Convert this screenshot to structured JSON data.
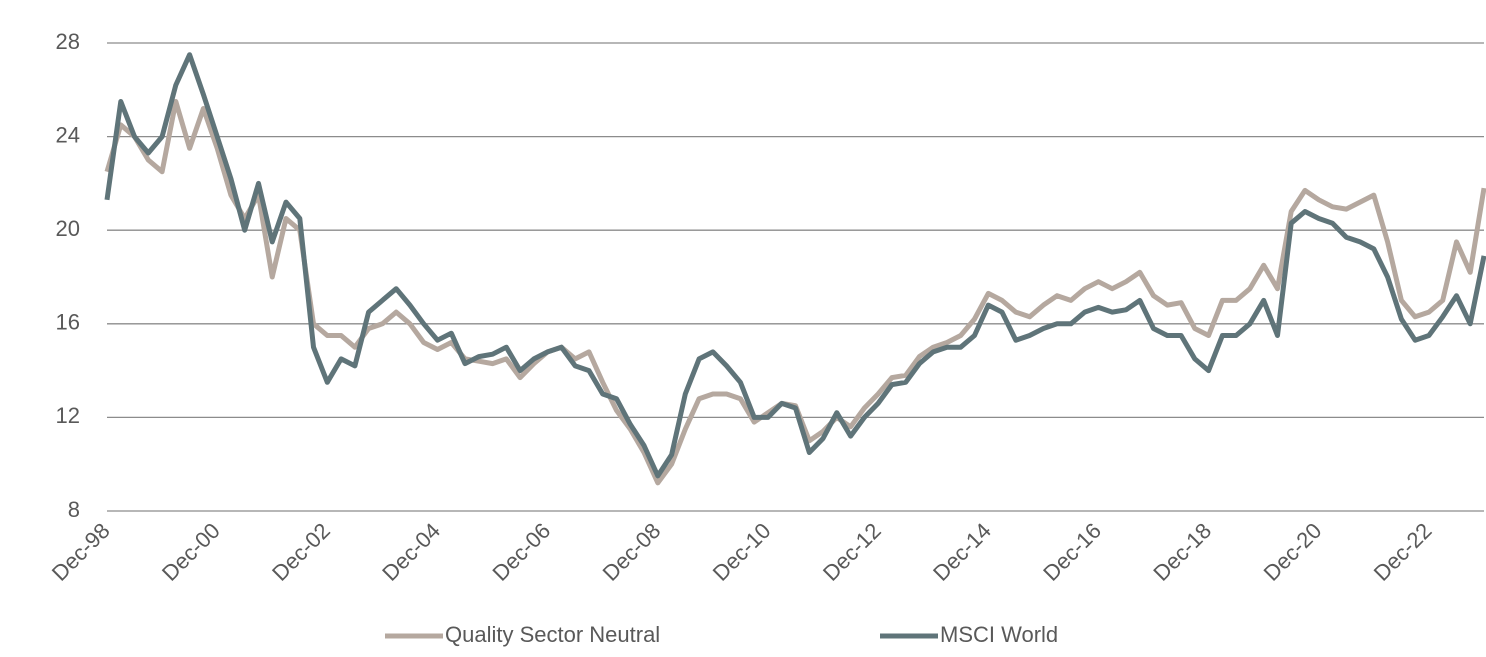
{
  "chart_data": {
    "type": "line",
    "categories": [
      "Dec-98",
      null,
      null,
      null,
      null,
      null,
      null,
      null,
      "Dec-00",
      null,
      null,
      null,
      null,
      null,
      null,
      null,
      "Dec-02",
      null,
      null,
      null,
      null,
      null,
      null,
      null,
      "Dec-04",
      null,
      null,
      null,
      null,
      null,
      null,
      null,
      "Dec-06",
      null,
      null,
      null,
      null,
      null,
      null,
      null,
      "Dec-08",
      null,
      null,
      null,
      null,
      null,
      null,
      null,
      "Dec-10",
      null,
      null,
      null,
      null,
      null,
      null,
      null,
      "Dec-12",
      null,
      null,
      null,
      null,
      null,
      null,
      null,
      "Dec-14",
      null,
      null,
      null,
      null,
      null,
      null,
      null,
      "Dec-16",
      null,
      null,
      null,
      null,
      null,
      null,
      null,
      "Dec-18",
      null,
      null,
      null,
      null,
      null,
      null,
      null,
      "Dec-20",
      null,
      null,
      null,
      null,
      null,
      null,
      null,
      "Dec-22",
      null,
      null,
      null,
      null
    ],
    "series": [
      {
        "name": "Quality Sector Neutral",
        "color": "#b5a89f",
        "values": [
          22.5,
          24.5,
          24.0,
          23.0,
          22.5,
          25.5,
          23.5,
          25.2,
          23.5,
          21.5,
          20.5,
          21.5,
          18.0,
          20.5,
          20.0,
          16.0,
          15.5,
          15.5,
          15.0,
          15.8,
          16.0,
          16.5,
          16.0,
          15.2,
          14.9,
          15.2,
          14.5,
          14.4,
          14.3,
          14.5,
          13.7,
          14.3,
          14.8,
          15.0,
          14.5,
          14.8,
          13.5,
          12.3,
          11.5,
          10.5,
          9.2,
          10.0,
          11.5,
          12.8,
          13.0,
          13.0,
          12.8,
          11.8,
          12.2,
          12.6,
          12.5,
          11.0,
          11.4,
          12.0,
          11.6,
          12.4,
          13.0,
          13.7,
          13.8,
          14.6,
          15.0,
          15.2,
          15.5,
          16.2,
          17.3,
          17.0,
          16.5,
          16.3,
          16.8,
          17.2,
          17.0,
          17.5,
          17.8,
          17.5,
          17.8,
          18.2,
          17.2,
          16.8,
          16.9,
          15.8,
          15.5,
          17.0,
          17.0,
          17.5,
          18.5,
          17.5,
          20.8,
          21.7,
          21.3,
          21.0,
          20.9,
          21.2,
          21.5,
          19.5,
          17.0,
          16.3,
          16.5,
          17.0,
          19.5,
          18.2,
          21.8
        ]
      },
      {
        "name": "MSCI World",
        "color": "#5f7479",
        "values": [
          21.3,
          25.5,
          24.0,
          23.3,
          24.0,
          26.2,
          27.5,
          25.8,
          24.0,
          22.2,
          20.0,
          22.0,
          19.5,
          21.2,
          20.5,
          15.0,
          13.5,
          14.5,
          14.2,
          16.5,
          17.0,
          17.5,
          16.8,
          16.0,
          15.3,
          15.6,
          14.3,
          14.6,
          14.7,
          15.0,
          14.0,
          14.5,
          14.8,
          15.0,
          14.2,
          14.0,
          13.0,
          12.8,
          11.7,
          10.8,
          9.5,
          10.4,
          13.0,
          14.5,
          14.8,
          14.2,
          13.5,
          12.0,
          12.0,
          12.6,
          12.4,
          10.5,
          11.1,
          12.2,
          11.2,
          12.0,
          12.6,
          13.4,
          13.5,
          14.3,
          14.8,
          15.0,
          15.0,
          15.5,
          16.8,
          16.5,
          15.3,
          15.5,
          15.8,
          16.0,
          16.0,
          16.5,
          16.7,
          16.5,
          16.6,
          17.0,
          15.8,
          15.5,
          15.5,
          14.5,
          14.0,
          15.5,
          15.5,
          16.0,
          17.0,
          15.5,
          20.3,
          20.8,
          20.5,
          20.3,
          19.7,
          19.5,
          19.2,
          18.0,
          16.2,
          15.3,
          15.5,
          16.3,
          17.2,
          16.0,
          18.9
        ]
      }
    ],
    "ylim": [
      8,
      28
    ],
    "yticks": [
      8,
      12,
      16,
      20,
      24,
      28
    ],
    "grid": true,
    "legend": "bottom"
  }
}
